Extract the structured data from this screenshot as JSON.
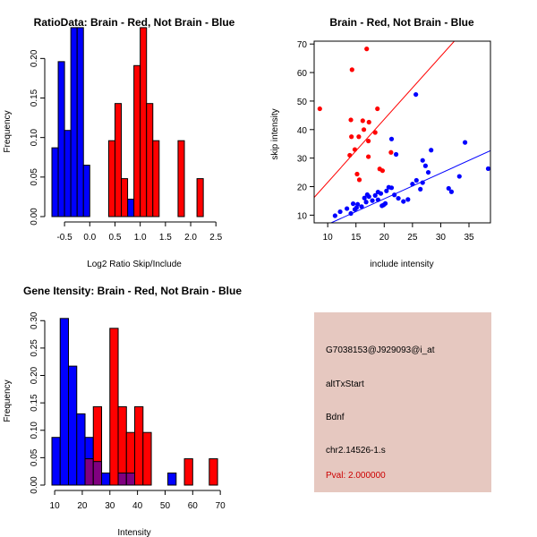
{
  "chart_data": [
    {
      "id": "ratio",
      "type": "histogram",
      "title": "RatioData: Brain - Red, Not Brain - Blue",
      "xlabel": "Log2 Ratio Skip/Include",
      "ylabel": "Frequency",
      "xlim": [
        -0.75,
        2.62
      ],
      "ylim": [
        0,
        0.24
      ],
      "xticks": [
        "-0.5",
        "0.0",
        "0.5",
        "1.0",
        "1.5",
        "2.0",
        "2.5"
      ],
      "xtick_values": [
        -0.5,
        0,
        0.5,
        1,
        1.5,
        2,
        2.5
      ],
      "yticks": [
        "0.00",
        "0.05",
        "0.10",
        "0.15",
        "0.20"
      ],
      "ytick_values": [
        0,
        0.05,
        0.1,
        0.15,
        0.2
      ],
      "bin_start": -0.75,
      "bin_width": 0.125,
      "series": [
        {
          "name": "Not Brain",
          "color": "#0000ff",
          "start_bin": 0,
          "values": [
            0.087,
            0.196,
            0.109,
            0.239,
            0.239,
            0.065,
            0,
            0,
            0,
            0,
            0,
            0,
            0.022,
            0,
            0
          ]
        },
        {
          "name": "Brain",
          "color": "#ff0000",
          "start_bin": 9,
          "values": [
            0.096,
            0.143,
            0.048,
            0,
            0.191,
            0.239,
            0.143,
            0.096,
            0,
            0,
            0,
            0.096,
            0,
            0,
            0.048
          ]
        }
      ]
    },
    {
      "id": "scatter",
      "type": "scatter",
      "title": "Brain - Red, Not Brain - Blue",
      "xlabel": "include intensity",
      "ylabel": "skip intensity",
      "xlim": [
        7.6,
        38.8
      ],
      "ylim": [
        7.3,
        71
      ],
      "xticks": [
        "10",
        "15",
        "20",
        "25",
        "30",
        "35"
      ],
      "xtick_values": [
        10,
        15,
        20,
        25,
        30,
        35
      ],
      "yticks": [
        "10",
        "20",
        "30",
        "40",
        "50",
        "60",
        "70"
      ],
      "ytick_values": [
        10,
        20,
        30,
        40,
        50,
        60,
        70
      ],
      "series": [
        {
          "name": "Brain",
          "color": "#ff0000",
          "points": [
            [
              8.6,
              47.3
            ],
            [
              14.3,
              61
            ],
            [
              16.9,
              68.3
            ],
            [
              14.1,
              43.4
            ],
            [
              16.2,
              43.1
            ],
            [
              17.3,
              42.6
            ],
            [
              18.8,
              47.3
            ],
            [
              14.2,
              37.5
            ],
            [
              15.5,
              37.5
            ],
            [
              16.4,
              40
            ],
            [
              17.2,
              36
            ],
            [
              14.8,
              33
            ],
            [
              13.9,
              31
            ],
            [
              15.2,
              24.4
            ],
            [
              15.6,
              22.4
            ],
            [
              17.2,
              30.5
            ],
            [
              18.4,
              39
            ],
            [
              19.2,
              26.2
            ],
            [
              19.7,
              25.6
            ],
            [
              21.2,
              32
            ]
          ],
          "fit": [
            [
              7.6,
              16.2
            ],
            [
              32.4,
              71
            ]
          ]
        },
        {
          "name": "Not Brain",
          "color": "#0000ff",
          "points": [
            [
              11.3,
              9.8
            ],
            [
              12.2,
              11.2
            ],
            [
              13.4,
              12.3
            ],
            [
              14.1,
              10.6
            ],
            [
              14.8,
              12
            ],
            [
              15.3,
              13.8
            ],
            [
              16,
              13
            ],
            [
              16.8,
              14.6
            ],
            [
              17.3,
              16.5
            ],
            [
              17.9,
              15.1
            ],
            [
              18.4,
              16.9
            ],
            [
              18.9,
              15.4
            ],
            [
              19.4,
              17.6
            ],
            [
              19.9,
              13.6
            ],
            [
              20.4,
              18.5
            ],
            [
              20.8,
              19.8
            ],
            [
              21.3,
              19.6
            ],
            [
              21.8,
              17.1
            ],
            [
              22.5,
              15.9
            ],
            [
              23.4,
              14.8
            ],
            [
              24.2,
              15.5
            ],
            [
              25,
              20.9
            ],
            [
              25.7,
              22.2
            ],
            [
              26.4,
              19.1
            ],
            [
              26.8,
              21.4
            ],
            [
              27.3,
              27.3
            ],
            [
              27.8,
              25
            ],
            [
              28.3,
              32.8
            ],
            [
              31.4,
              19.4
            ],
            [
              31.9,
              18.2
            ],
            [
              33.3,
              23.6
            ],
            [
              34.3,
              35.5
            ],
            [
              38.4,
              26.3
            ],
            [
              25.6,
              52.3
            ],
            [
              21.3,
              36.7
            ],
            [
              22.1,
              31.3
            ],
            [
              16.5,
              16
            ],
            [
              15.1,
              12.6
            ],
            [
              19.6,
              13.3
            ],
            [
              20.2,
              14.1
            ],
            [
              26.8,
              29.2
            ],
            [
              14.5,
              14
            ],
            [
              17,
              17.2
            ],
            [
              18.9,
              18.1
            ]
          ],
          "fit": [
            [
              10.6,
              7.3
            ],
            [
              38.8,
              32.6
            ]
          ]
        }
      ]
    },
    {
      "id": "intensity",
      "type": "histogram",
      "title": "Gene Itensity: Brain - Red, Not Brain - Blue",
      "xlabel": "Intensity",
      "ylabel": "Frequency",
      "xlim": [
        9,
        70.6
      ],
      "ylim": [
        0,
        0.3135
      ],
      "xticks": [
        "10",
        "20",
        "30",
        "40",
        "50",
        "60",
        "70"
      ],
      "xtick_values": [
        10,
        20,
        30,
        40,
        50,
        60,
        70
      ],
      "yticks": [
        "0.00",
        "0.05",
        "0.10",
        "0.15",
        "0.20",
        "0.25",
        "0.30"
      ],
      "ytick_values": [
        0,
        0.05,
        0.1,
        0.15,
        0.2,
        0.25,
        0.3
      ],
      "bin_start": 9,
      "bin_width": 3,
      "series": [
        {
          "name": "Not Brain",
          "color": "#0000ff",
          "start_bin": 0,
          "values": [
            0.087,
            0.304,
            0.217,
            0.13,
            0.087,
            0.043,
            0.022,
            0,
            0.022,
            0.022,
            0,
            0,
            0,
            0,
            0.022
          ]
        },
        {
          "name": "Brain",
          "color": "#ff0000",
          "start_bin": 4,
          "values": [
            0.048,
            0.143,
            0,
            0.286,
            0.143,
            0.096,
            0.143,
            0.096,
            0,
            0,
            0,
            0,
            0.048,
            0,
            0,
            0.048
          ]
        }
      ]
    }
  ],
  "info_panel": {
    "probe": "G7038153@J929093@i_at",
    "event": "altTxStart",
    "gene": "Bdnf",
    "location": "chr2.14526-1.s",
    "pval": "Pval: 2.000000",
    "background": "#e6c8c0",
    "pval_color": "#cc0000"
  }
}
